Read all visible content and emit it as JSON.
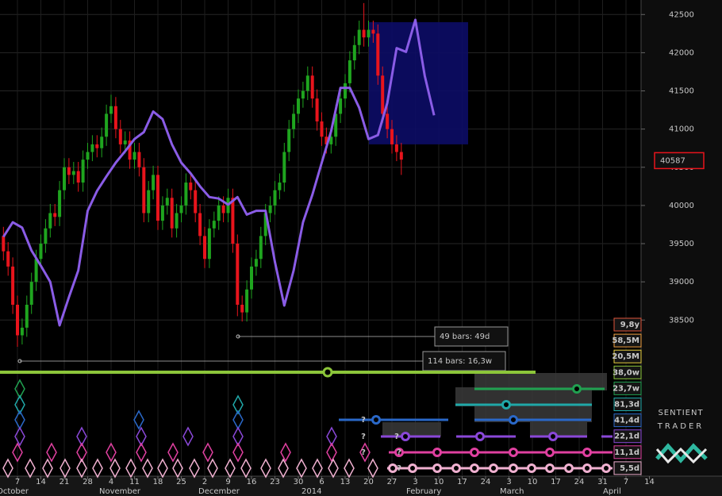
{
  "chart_data": {
    "type": "candlestick",
    "open": [
      39600,
      39400,
      39200,
      38700,
      38300,
      38400,
      38700,
      39000,
      39300,
      39500,
      39700,
      39900,
      39850,
      40200,
      40500,
      40400,
      40450,
      40300,
      40600,
      40700,
      40800,
      40750,
      40900,
      41200,
      41300,
      41000,
      40800,
      40850,
      40600,
      40700,
      40500,
      39900,
      40200,
      40400,
      39800,
      40000,
      40100,
      39700,
      39900,
      40000,
      40300,
      40200,
      39900,
      39600,
      39300,
      39700,
      39800,
      40000,
      39900,
      40100,
      39500,
      38700,
      38600,
      38900,
      39200,
      39300,
      39600,
      39900,
      40000,
      40200,
      40300,
      40700,
      41000,
      41200,
      41400,
      41500,
      41700,
      41400,
      41100,
      40900,
      40800,
      40900,
      41200,
      41400,
      41600,
      41900,
      42100,
      42300,
      42200,
      42300,
      42250,
      41700,
      41200,
      41000,
      40800,
      40700
    ],
    "high": [
      39720,
      39520,
      39320,
      38820,
      38520,
      38820,
      39120,
      39420,
      39620,
      39820,
      40020,
      40020,
      40320,
      40620,
      40620,
      40570,
      40570,
      40720,
      40820,
      40920,
      40920,
      41020,
      41320,
      41450,
      41420,
      41120,
      40970,
      40970,
      40820,
      40820,
      40620,
      40320,
      40520,
      40520,
      40120,
      40220,
      40220,
      40020,
      40120,
      40420,
      40420,
      40320,
      40020,
      39720,
      39820,
      39920,
      40120,
      40120,
      40220,
      40220,
      39620,
      38820,
      39020,
      39320,
      39420,
      39720,
      40020,
      40120,
      40320,
      40420,
      40820,
      41120,
      41320,
      41520,
      41620,
      41820,
      41820,
      41520,
      41220,
      41020,
      41020,
      41320,
      41520,
      41720,
      42020,
      42220,
      42420,
      42650,
      42420,
      42420,
      42370,
      41820,
      41320,
      41120,
      40920,
      40820
    ],
    "low": [
      39280,
      39080,
      38580,
      38150,
      38180,
      38280,
      38580,
      38880,
      39180,
      39380,
      39580,
      39730,
      39730,
      40080,
      40280,
      40280,
      40180,
      40180,
      40480,
      40580,
      40630,
      40630,
      40780,
      41080,
      40880,
      40680,
      40680,
      40480,
      40480,
      40380,
      39780,
      39780,
      40080,
      39680,
      39680,
      39880,
      39580,
      39580,
      39780,
      39880,
      40080,
      39780,
      39480,
      39180,
      39180,
      39580,
      39680,
      39780,
      39780,
      39380,
      38550,
      38480,
      38480,
      38780,
      39080,
      39180,
      39480,
      39780,
      39880,
      40080,
      40180,
      40580,
      40880,
      41080,
      41280,
      41380,
      41280,
      40980,
      40780,
      40680,
      40680,
      40780,
      41080,
      41280,
      41480,
      41780,
      41980,
      42080,
      42080,
      42130,
      41580,
      41080,
      40880,
      40680,
      40580,
      40400
    ],
    "close": [
      39400,
      39200,
      38700,
      38300,
      38400,
      38700,
      39000,
      39300,
      39500,
      39700,
      39900,
      39850,
      40200,
      40500,
      40400,
      40450,
      40300,
      40600,
      40700,
      40800,
      40750,
      40900,
      41200,
      41300,
      41000,
      40800,
      40850,
      40600,
      40700,
      40500,
      39900,
      40200,
      40400,
      39800,
      40000,
      40100,
      39700,
      39900,
      40000,
      40300,
      40200,
      39900,
      39600,
      39300,
      39700,
      39800,
      40000,
      39900,
      40100,
      39500,
      38700,
      38600,
      38900,
      39200,
      39300,
      39600,
      39900,
      40000,
      40200,
      40300,
      40700,
      41000,
      41200,
      41400,
      41500,
      41700,
      41400,
      41100,
      40900,
      40800,
      40900,
      41200,
      41400,
      41600,
      41900,
      42100,
      42300,
      42200,
      42300,
      42250,
      41700,
      41200,
      41000,
      40800,
      40700,
      40600
    ],
    "up_color": "#1fa51f",
    "down_color": "#e8141c",
    "ylim": [
      37900,
      42690
    ],
    "yticks": [
      38500,
      39000,
      39500,
      40000,
      40500,
      41000,
      41500,
      42000,
      42500
    ],
    "grid": true,
    "x_tick_labels": [
      "7",
      "14",
      "21",
      "28",
      "4",
      "11",
      "18",
      "25",
      "2",
      "9",
      "16",
      "23",
      "30",
      "6",
      "13",
      "20",
      "27",
      "3",
      "10",
      "17",
      "24",
      "3",
      "10",
      "17",
      "24",
      "31",
      "7",
      "14"
    ],
    "month_labels": [
      "October",
      "November",
      "December",
      "2014",
      "February",
      "March",
      "April"
    ],
    "indicator": {
      "color": "#8a5ce6",
      "values": [
        39590,
        39780,
        39710,
        39410,
        39210,
        39000,
        38430,
        38800,
        39150,
        39930,
        40190,
        40380,
        40560,
        40710,
        40870,
        40960,
        41230,
        41130,
        40800,
        40560,
        40420,
        40250,
        40110,
        40090,
        40010,
        40110,
        39880,
        39930,
        39930,
        39260,
        38690,
        39150,
        39780,
        40140,
        40560,
        40970,
        41540,
        41540,
        41280,
        40870,
        40920,
        41340,
        42060,
        42010,
        42430,
        41700,
        41180
      ]
    },
    "projection_zone": {
      "color": "#0c0c66",
      "top": 42400,
      "bottom": 40800
    },
    "last_price": 40587,
    "annotations": [
      "49 bars: 49d",
      "114 bars: 16,3w"
    ],
    "cycles": [
      {
        "name": "9,8y",
        "color": "#e0553a"
      },
      {
        "name": "58,5M",
        "color": "#f0a040"
      },
      {
        "name": "20,5M",
        "color": "#e8d040"
      },
      {
        "name": "38,0w",
        "color": "#8cc63a"
      },
      {
        "name": "23,7w",
        "color": "#20a050"
      },
      {
        "name": "81,3d",
        "color": "#20a8a8"
      },
      {
        "name": "41,4d",
        "color": "#2a68c8"
      },
      {
        "name": "22,1d",
        "color": "#8a48d8"
      },
      {
        "name": "11,1d",
        "color": "#e040a0"
      },
      {
        "name": "5,5d",
        "color": "#f0b0d0"
      }
    ],
    "unknown_marker": "?",
    "logo": {
      "line1": "SENTIENT",
      "line2": "TRADER"
    }
  }
}
